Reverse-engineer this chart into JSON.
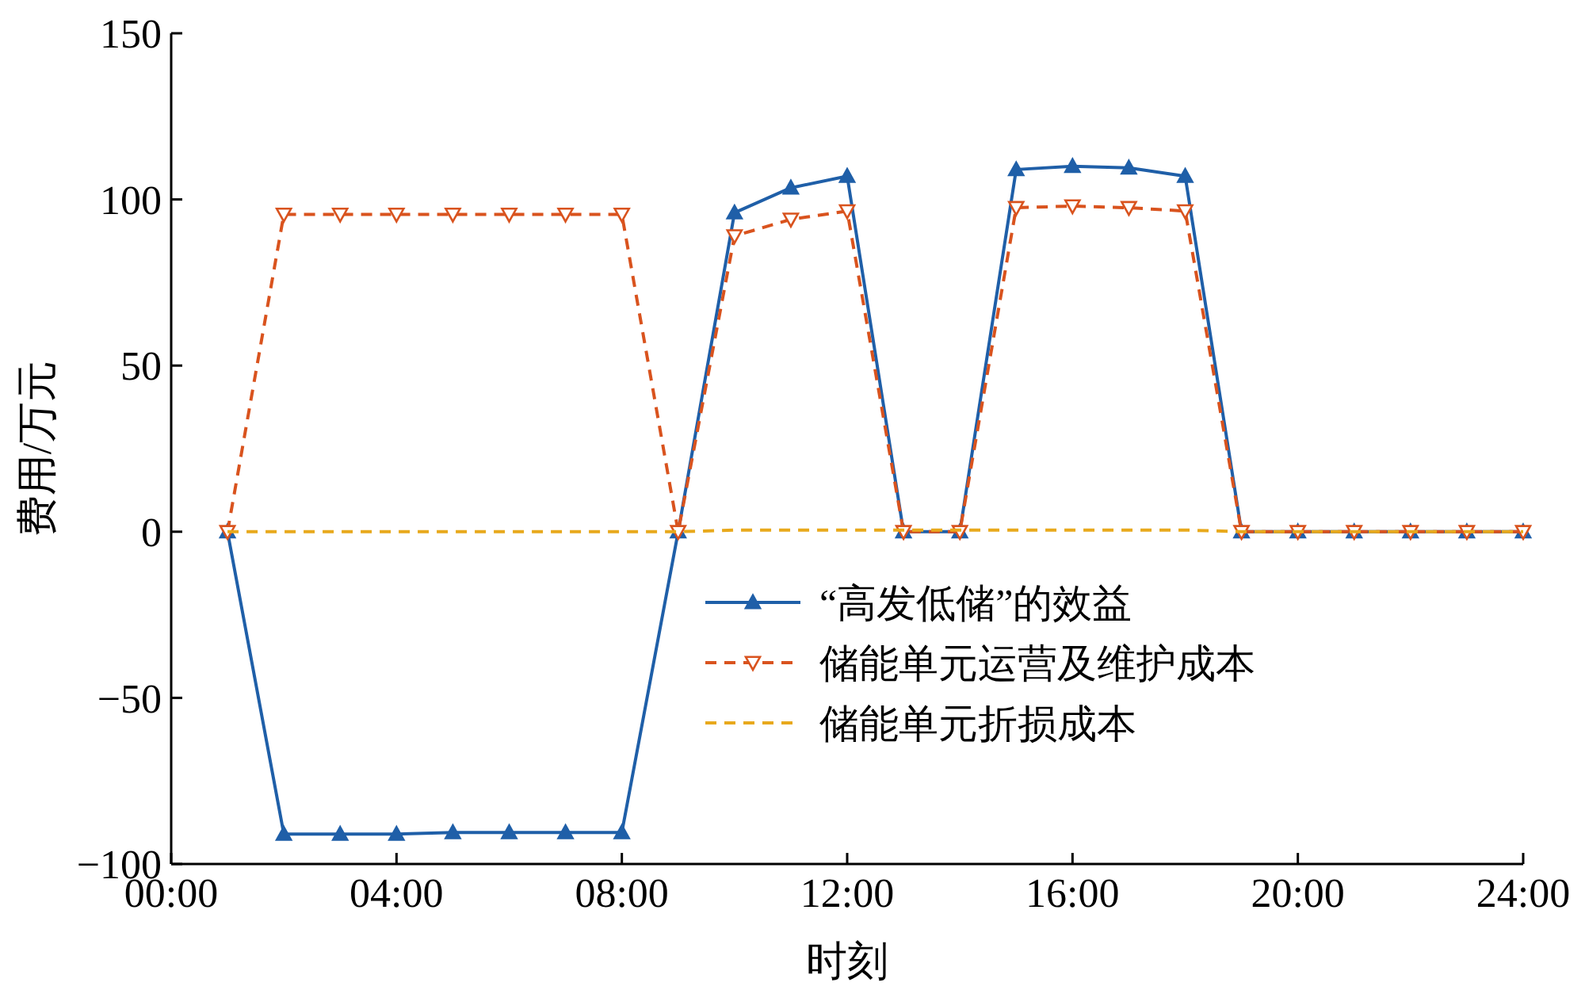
{
  "chart_data": {
    "type": "line",
    "xlabel": "时刻",
    "ylabel": "费用/万元",
    "x": [
      1,
      2,
      3,
      4,
      5,
      6,
      7,
      8,
      9,
      10,
      11,
      12,
      13,
      14,
      15,
      16,
      17,
      18,
      19,
      20,
      21,
      22,
      23,
      24
    ],
    "xlim": [
      0,
      24
    ],
    "xticks": [
      {
        "value": 0,
        "label": "00:00"
      },
      {
        "value": 4,
        "label": "04:00"
      },
      {
        "value": 8,
        "label": "08:00"
      },
      {
        "value": 12,
        "label": "12:00"
      },
      {
        "value": 16,
        "label": "16:00"
      },
      {
        "value": 20,
        "label": "20:00"
      },
      {
        "value": 24,
        "label": "24:00"
      }
    ],
    "ylim": [
      -100,
      150
    ],
    "yticks": [
      {
        "value": -100,
        "label": "−100"
      },
      {
        "value": -50,
        "label": "−50"
      },
      0,
      50,
      100,
      150
    ],
    "grid": false,
    "legend": "bottom right",
    "series": [
      {
        "name": "“高发低储”的效益",
        "color": "#1f5fa8",
        "marker": "triangle",
        "line_style": "solid",
        "values": [
          0,
          -91,
          -91,
          -91,
          -90.5,
          -90.5,
          -90.5,
          -90.5,
          0,
          96,
          103.5,
          107,
          0,
          0,
          109,
          110,
          109.5,
          107,
          0,
          0,
          0,
          0,
          0,
          0
        ]
      },
      {
        "name": "储能单元运营及维护成本",
        "color": "#d9531e",
        "marker": "triangle-down",
        "line_style": "dashed",
        "values": [
          0,
          95.5,
          95.5,
          95.5,
          95.5,
          95.5,
          95.5,
          95.5,
          0,
          89,
          94,
          96.5,
          0,
          0,
          97.5,
          98,
          97.5,
          96.5,
          0,
          0,
          0,
          0,
          0,
          0
        ]
      },
      {
        "name": "储能单元折损成本",
        "color": "#e8a91c",
        "marker": "none",
        "line_style": "dashed",
        "values": [
          0,
          0,
          0,
          0,
          0,
          0,
          0,
          0,
          0,
          0.5,
          0.5,
          0.5,
          0.5,
          0.5,
          0.5,
          0.5,
          0.5,
          0.5,
          0,
          0,
          0,
          0,
          0,
          0
        ]
      }
    ]
  }
}
